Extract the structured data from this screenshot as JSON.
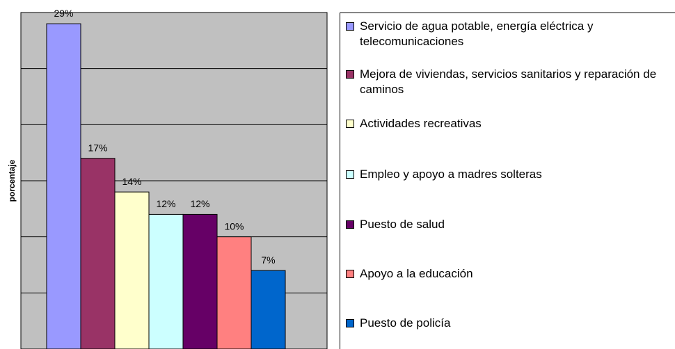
{
  "chart_data": {
    "type": "bar",
    "y_label": "porcentaje",
    "categories": [
      "Servicio de agua potable, energía eléctrica y telecomunicaciones",
      "Mejora de viviendas, servicios sanitarios y reparación de caminos",
      "Actividades recreativas",
      "Empleo y apoyo a madres solteras",
      "Puesto de salud",
      "Apoyo a la educación",
      "Puesto de policía"
    ],
    "values": [
      29,
      17,
      14,
      12,
      12,
      10,
      7
    ],
    "value_labels": [
      "29%",
      "17%",
      "14%",
      "12%",
      "12%",
      "10%",
      "7%"
    ],
    "colors": [
      "#9999ff",
      "#993366",
      "#ffffcc",
      "#ccffff",
      "#660066",
      "#ff8080",
      "#0066cc"
    ],
    "ylim": [
      0,
      30
    ],
    "yticks": [
      0,
      5,
      10,
      15,
      20,
      25,
      30
    ],
    "grid": true,
    "legend": "right"
  }
}
